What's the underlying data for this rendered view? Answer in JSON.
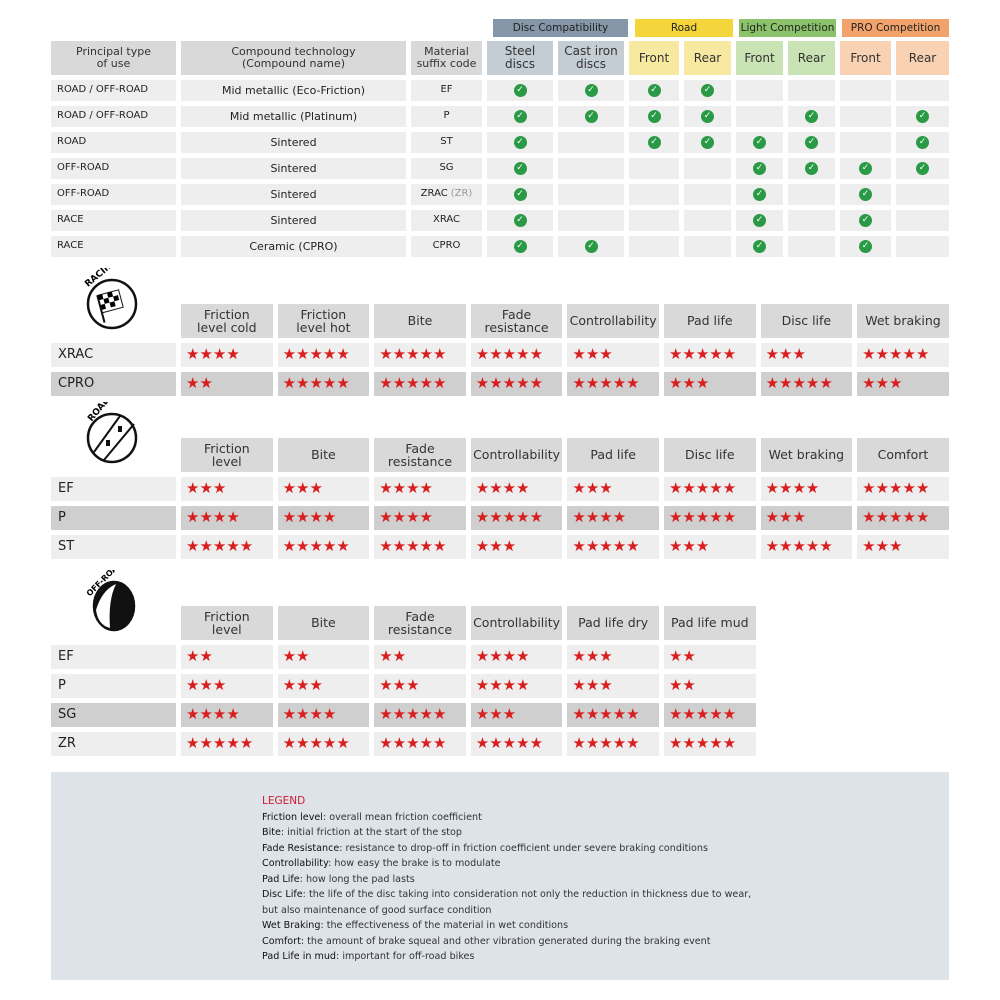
{
  "compat": {
    "groups": [
      {
        "label": "Disc Compatibility",
        "color": "#8496a8",
        "span": 2
      },
      {
        "label": "Road",
        "color": "#f4d53b",
        "span": 2
      },
      {
        "label": "Light Competition",
        "color": "#8cc26a",
        "span": 2
      },
      {
        "label": "PRO Competition",
        "color": "#f2a36c",
        "span": 2
      }
    ],
    "sub_colors": [
      "#c4ccd4",
      "#c4ccd4",
      "#f8e9a0",
      "#f8e9a0",
      "#c9e3b4",
      "#c9e3b4",
      "#f8d2b3",
      "#f8d2b3"
    ],
    "headers": [
      "Principal type\nof use",
      "Compound technology\n(Compound name)",
      "Material\nsuffix code",
      "Steel\ndiscs",
      "Cast iron\ndiscs",
      "Front",
      "Rear",
      "Front",
      "Rear",
      "Front",
      "Rear"
    ],
    "rows": [
      {
        "use": "ROAD / OFF-ROAD",
        "compound": "Mid metallic (Eco-Friction)",
        "code": "EF",
        "suffix": "",
        "checks": [
          1,
          1,
          1,
          1,
          0,
          0,
          0,
          0
        ]
      },
      {
        "use": "ROAD / OFF-ROAD",
        "compound": "Mid metallic (Platinum)",
        "code": "P",
        "suffix": "",
        "checks": [
          1,
          1,
          1,
          1,
          0,
          1,
          0,
          1
        ]
      },
      {
        "use": "ROAD",
        "compound": "Sintered",
        "code": "ST",
        "suffix": "",
        "checks": [
          1,
          0,
          1,
          1,
          1,
          1,
          0,
          1
        ]
      },
      {
        "use": "OFF-ROAD",
        "compound": "Sintered",
        "code": "SG",
        "suffix": "",
        "checks": [
          1,
          0,
          0,
          0,
          1,
          1,
          1,
          1
        ]
      },
      {
        "use": "OFF-ROAD",
        "compound": "Sintered",
        "code": "ZRAC",
        "suffix": "(ZR)",
        "checks": [
          1,
          0,
          0,
          0,
          1,
          0,
          1,
          0
        ]
      },
      {
        "use": "RACE",
        "compound": "Sintered",
        "code": "XRAC",
        "suffix": "",
        "checks": [
          1,
          0,
          0,
          0,
          1,
          0,
          1,
          0
        ]
      },
      {
        "use": "RACE",
        "compound": "Ceramic (CPRO)",
        "code": "CPRO",
        "suffix": "",
        "checks": [
          1,
          1,
          0,
          0,
          1,
          0,
          1,
          0
        ]
      }
    ],
    "check_color": "#2a9a46"
  },
  "ratings": [
    {
      "icon_label": "RACING",
      "icon": "checkered-flag-icon",
      "headers": [
        "Friction\nlevel cold",
        "Friction\nlevel hot",
        "Bite",
        "Fade\nresistance",
        "Controllability",
        "Pad life",
        "Disc life",
        "Wet braking"
      ],
      "rows": [
        {
          "name": "XRAC",
          "stars": [
            4,
            5,
            5,
            5,
            3,
            5,
            3,
            5
          ],
          "dark": false
        },
        {
          "name": "CPRO",
          "stars": [
            2,
            5,
            5,
            5,
            5,
            3,
            5,
            3
          ],
          "dark": true
        }
      ]
    },
    {
      "icon_label": "ROAD",
      "icon": "road-icon",
      "headers": [
        "Friction\nlevel",
        "Bite",
        "Fade\nresistance",
        "Controllability",
        "Pad life",
        "Disc life",
        "Wet braking",
        "Comfort"
      ],
      "rows": [
        {
          "name": "EF",
          "stars": [
            3,
            3,
            4,
            4,
            3,
            5,
            4,
            5
          ],
          "dark": false
        },
        {
          "name": "P",
          "stars": [
            4,
            4,
            4,
            5,
            4,
            5,
            3,
            5
          ],
          "dark": true
        },
        {
          "name": "ST",
          "stars": [
            5,
            5,
            5,
            3,
            5,
            3,
            5,
            3
          ],
          "dark": false
        }
      ]
    },
    {
      "icon_label": "OFF-ROAD",
      "icon": "mud-splash-icon",
      "headers": [
        "Friction\nlevel",
        "Bite",
        "Fade\nresistance",
        "Controllability",
        "Pad life dry",
        "Pad life mud"
      ],
      "rows": [
        {
          "name": "EF",
          "stars": [
            2,
            2,
            2,
            4,
            3,
            2
          ],
          "dark": false
        },
        {
          "name": "P",
          "stars": [
            3,
            3,
            3,
            4,
            3,
            2
          ],
          "dark": false
        },
        {
          "name": "SG",
          "stars": [
            4,
            4,
            5,
            3,
            5,
            5
          ],
          "dark": true
        },
        {
          "name": "ZR",
          "stars": [
            5,
            5,
            5,
            5,
            5,
            5
          ],
          "dark": false
        }
      ]
    }
  ],
  "star_color": "#d81e1e",
  "legend": {
    "title": "LEGEND",
    "items": [
      {
        "term": "Friction level",
        "desc": ": overall mean friction coefficient"
      },
      {
        "term": "Bite",
        "desc": ": initial friction at the start of the stop"
      },
      {
        "term": "Fade Resistance",
        "desc": ": resistance to drop-off in friction coefficient under severe braking conditions"
      },
      {
        "term": "Controllability",
        "desc": ": how easy the brake is to modulate"
      },
      {
        "term": "Pad Life",
        "desc": ": how long the pad lasts"
      },
      {
        "term": "Disc Life",
        "desc": ": the life of the disc taking into consideration not only the reduction in thickness due to wear,"
      },
      {
        "term": "",
        "desc": "but also maintenance of good surface condition"
      },
      {
        "term": "Wet Braking",
        "desc": ": the effectiveness of the material in wet conditions"
      },
      {
        "term": "Comfort",
        "desc": ": the amount of brake squeal and other vibration generated during the braking event"
      },
      {
        "term": "Pad Life in mud",
        "desc": ": important for off-road bikes"
      }
    ]
  }
}
